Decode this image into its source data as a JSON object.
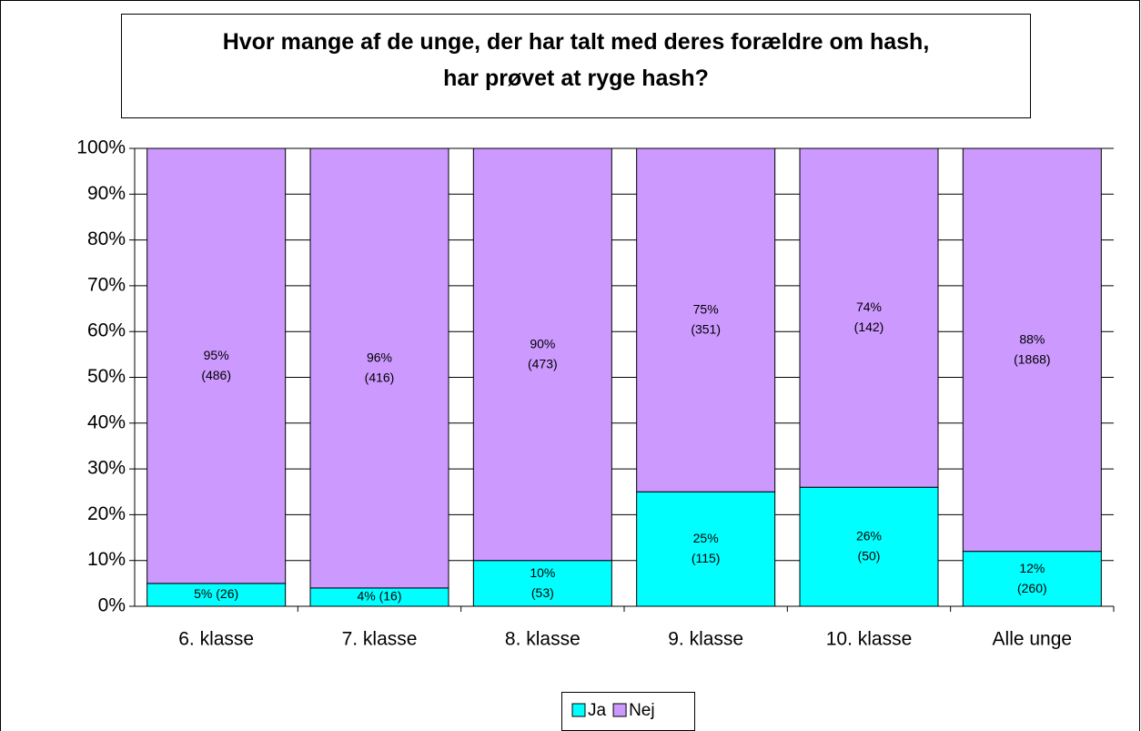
{
  "chart_data": {
    "type": "stacked_bar",
    "title": "Hvor mange af de unge, der har talt med deres forældre om hash, har prøvet at ryge hash?",
    "categories": [
      "6. klasse",
      "7. klasse",
      "8. klasse",
      "9. klasse",
      "10. klasse",
      "Alle unge"
    ],
    "series": [
      {
        "name": "Ja",
        "color": "#00ffff",
        "values": [
          5,
          4,
          10,
          25,
          26,
          12
        ],
        "value_labels": [
          "5% (26)",
          "4% (16)",
          "10% (53)",
          "25% (115)",
          "26% (50)",
          "12% (260)"
        ]
      },
      {
        "name": "Nej",
        "color": "#cc99ff",
        "values": [
          95,
          96,
          90,
          75,
          74,
          88
        ],
        "value_labels": [
          "95% (486)",
          "96% (416)",
          "90% (473)",
          "75% (351)",
          "74% (142)",
          "88% (1868)"
        ]
      }
    ],
    "ylim": [
      0,
      100
    ],
    "yticks": [
      {
        "value": 0,
        "label": "0%"
      },
      {
        "value": 10,
        "label": "10%"
      },
      {
        "value": 20,
        "label": "20%"
      },
      {
        "value": 30,
        "label": "30%"
      },
      {
        "value": 40,
        "label": "40%"
      },
      {
        "value": 50,
        "label": "50%"
      },
      {
        "value": 60,
        "label": "60%"
      },
      {
        "value": 70,
        "label": "70%"
      },
      {
        "value": 80,
        "label": "80%"
      },
      {
        "value": 90,
        "label": "90%"
      },
      {
        "value": 100,
        "label": "100%"
      }
    ],
    "grid": true,
    "legend": "bottom"
  }
}
